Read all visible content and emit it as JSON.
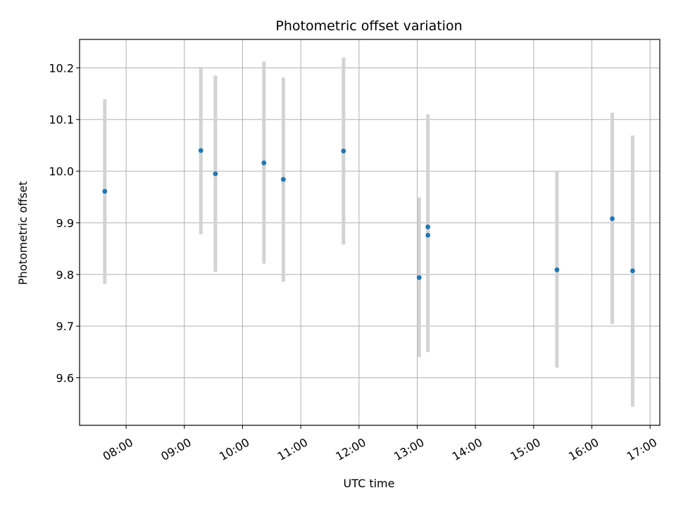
{
  "chart_data": {
    "type": "scatter",
    "title": "Photometric offset variation",
    "xlabel": "UTC time",
    "ylabel": "Photometric offset",
    "xlim": [
      "07:12",
      "17:10"
    ],
    "ylim": [
      9.508,
      10.255
    ],
    "x_ticks": [
      "08:00",
      "09:00",
      "10:00",
      "11:00",
      "12:00",
      "13:00",
      "14:00",
      "15:00",
      "16:00",
      "17:00"
    ],
    "y_ticks": [
      9.6,
      9.7,
      9.8,
      9.9,
      10.0,
      10.1,
      10.2
    ],
    "y_tick_labels": [
      "9.6",
      "9.7",
      "9.8",
      "9.9",
      "10.0",
      "10.1",
      "10.2"
    ],
    "grid": true,
    "point_color": "#1f77b4",
    "errorbar_color": "#d3d3d3",
    "series": [
      {
        "points": [
          {
            "x": "07:38",
            "y": 9.961,
            "ylow": 9.782,
            "yhigh": 10.139
          },
          {
            "x": "09:17",
            "y": 10.04,
            "ylow": 9.878,
            "yhigh": 10.202
          },
          {
            "x": "09:32",
            "y": 9.995,
            "ylow": 9.805,
            "yhigh": 10.185
          },
          {
            "x": "10:22",
            "y": 10.016,
            "ylow": 9.821,
            "yhigh": 10.212
          },
          {
            "x": "10:42",
            "y": 9.984,
            "ylow": 9.786,
            "yhigh": 10.181
          },
          {
            "x": "11:44",
            "y": 10.039,
            "ylow": 9.858,
            "yhigh": 10.22
          },
          {
            "x": "13:02",
            "y": 9.794,
            "ylow": 9.64,
            "yhigh": 9.949
          },
          {
            "x": "13:11",
            "y": 9.892,
            "ylow": 9.892,
            "yhigh": 9.892
          },
          {
            "x": "13:11",
            "y": 9.876,
            "ylow": 9.65,
            "yhigh": 10.11
          },
          {
            "x": "15:24",
            "y": 9.809,
            "ylow": 9.62,
            "yhigh": 9.999
          },
          {
            "x": "16:21",
            "y": 9.908,
            "ylow": 9.704,
            "yhigh": 10.113
          },
          {
            "x": "16:42",
            "y": 9.807,
            "ylow": 9.544,
            "yhigh": 10.069
          }
        ]
      }
    ]
  }
}
